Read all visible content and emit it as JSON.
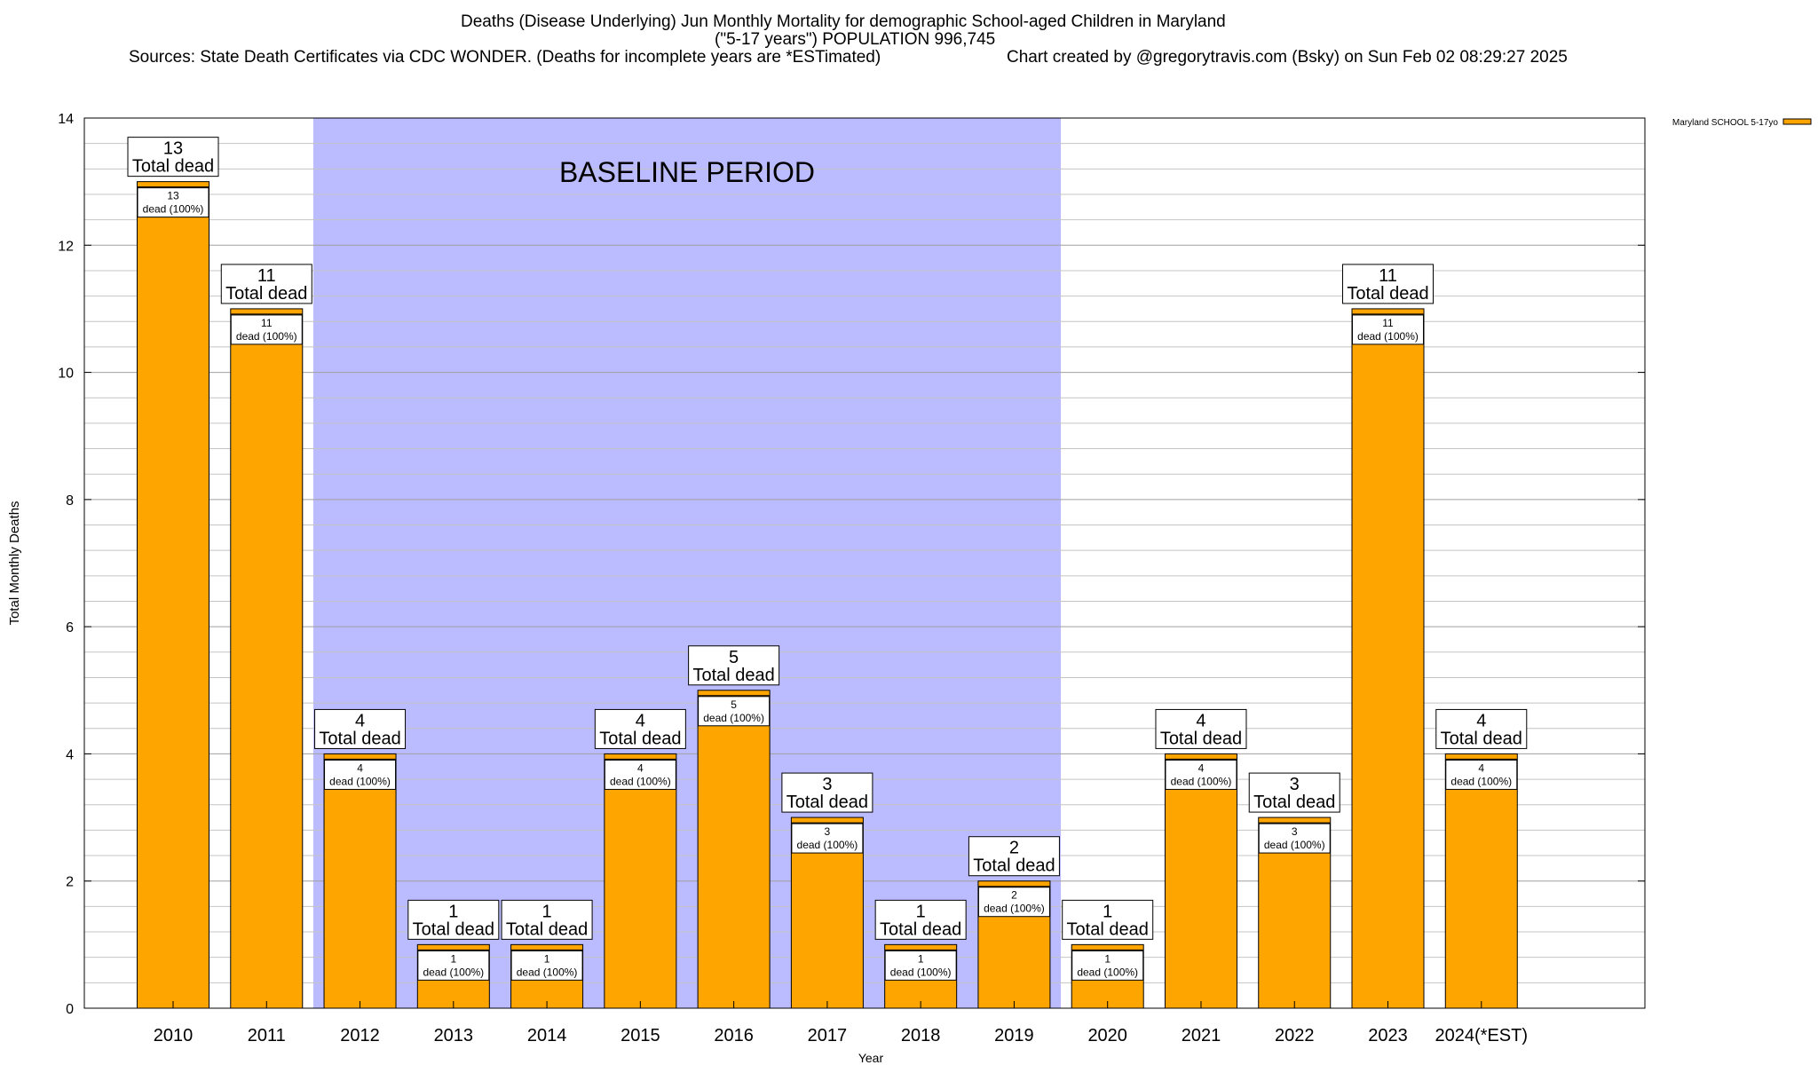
{
  "title": {
    "line1": "Deaths (Disease Underlying) Jun Monthly Mortality for demographic School-aged Children in Maryland",
    "line2": "(\"5-17 years\") POPULATION 996,745",
    "sources": "Sources: State Death Certificates via CDC WONDER. (Deaths for incomplete years are *ESTimated)",
    "credit": "Chart created by @gregorytravis.com (Bsky) on Sun Feb 02 08:29:27 2025"
  },
  "chart_data": {
    "type": "bar",
    "xlabel": "Year",
    "ylabel": "Total Monthly Deaths",
    "ylim": [
      0,
      14
    ],
    "y_ticks": [
      0,
      2,
      4,
      6,
      8,
      10,
      12,
      14
    ],
    "grid": true,
    "legend_position": "top-right",
    "categories": [
      "2010",
      "2011",
      "2012",
      "2013",
      "2014",
      "2015",
      "2016",
      "2017",
      "2018",
      "2019",
      "2020",
      "2021",
      "2022",
      "2023",
      "2024(*EST)"
    ],
    "series": [
      {
        "name": "Maryland SCHOOL 5-17yo",
        "values": [
          13,
          11,
          4,
          1,
          1,
          4,
          5,
          3,
          1,
          2,
          1,
          4,
          3,
          11,
          4
        ],
        "color": "#ffa500"
      }
    ],
    "total_label_suffix": "Total dead",
    "inner_label_suffix": "dead (100%)",
    "baseline_period": {
      "label": "BASELINE PERIOD",
      "start": "2012",
      "end": "2019",
      "color": "#bbbbff"
    }
  }
}
